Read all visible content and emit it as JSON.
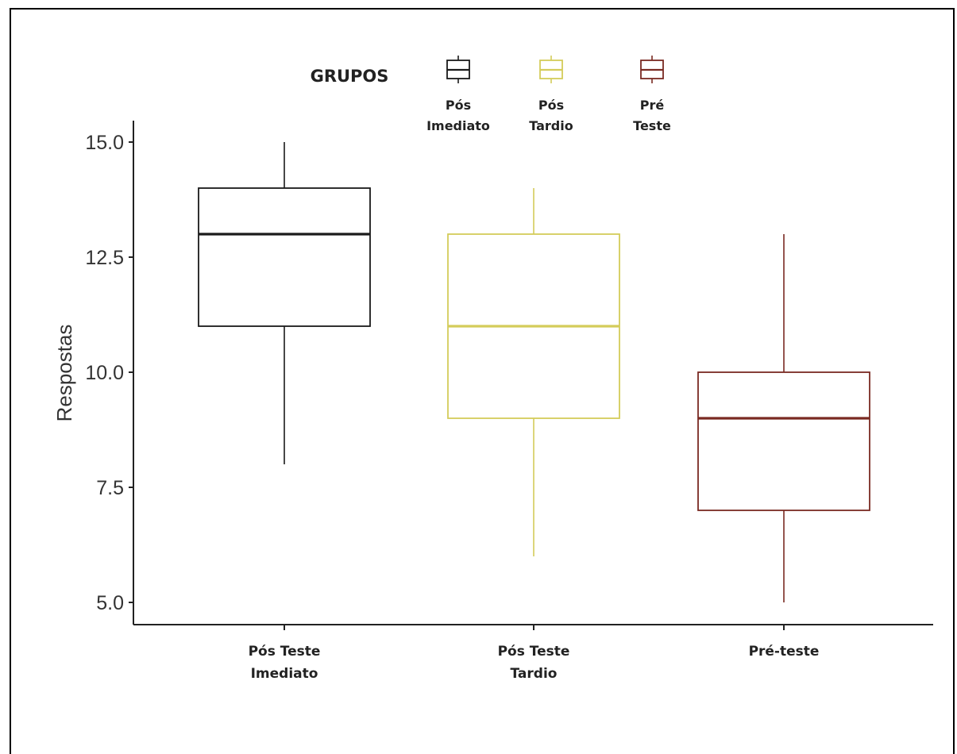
{
  "chart_data": {
    "type": "boxplot",
    "ylabel": "Respostas",
    "ylim": [
      4.5,
      15.5
    ],
    "yticks": [
      5.0,
      7.5,
      10.0,
      12.5,
      15.0
    ],
    "ytick_labels": [
      "5.0",
      "7.5",
      "10.0",
      "12.5",
      "15.0"
    ],
    "categories": [
      {
        "lines": [
          "Pós Teste",
          "Imediato"
        ]
      },
      {
        "lines": [
          "Pós Teste",
          "Tardio"
        ]
      },
      {
        "lines": [
          "Pré-teste"
        ]
      }
    ],
    "legend": {
      "title": "GRUPOS",
      "position": "top",
      "entries": [
        {
          "lines": [
            "Pós",
            "Imediato"
          ],
          "color": "#1a1a1a"
        },
        {
          "lines": [
            "Pós",
            "Tardio"
          ],
          "color": "#d4cc5a"
        },
        {
          "lines": [
            "Pré",
            "Teste"
          ],
          "color": "#7a2a22"
        }
      ]
    },
    "series": [
      {
        "min": 8,
        "q1": 11,
        "median": 13,
        "q3": 14,
        "max": 15,
        "color": "#1a1a1a"
      },
      {
        "min": 6,
        "q1": 9,
        "median": 11,
        "q3": 13,
        "max": 14,
        "color": "#d4cc5a"
      },
      {
        "min": 5,
        "q1": 7,
        "median": 9,
        "q3": 10,
        "max": 13,
        "color": "#7a2a22"
      }
    ],
    "grid": false
  }
}
